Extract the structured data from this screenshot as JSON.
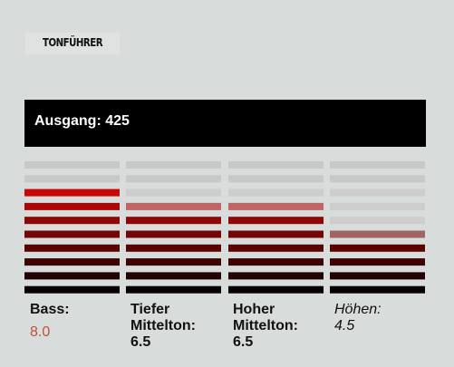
{
  "header": {
    "title": "TONFÜHRER"
  },
  "output": "Ausgang: 425",
  "equalizer": {
    "ylim": [
      0,
      10
    ],
    "bands": [
      {
        "label": "Bass:",
        "value": 8,
        "value_label": "8.0"
      },
      {
        "label": "Tiefer Mittelton:",
        "value": 6.5
      },
      {
        "label": "Hoher Mittelton:",
        "value": 6.5
      },
      {
        "label": "Höhen:",
        "value": 4.5
      }
    ]
  }
}
